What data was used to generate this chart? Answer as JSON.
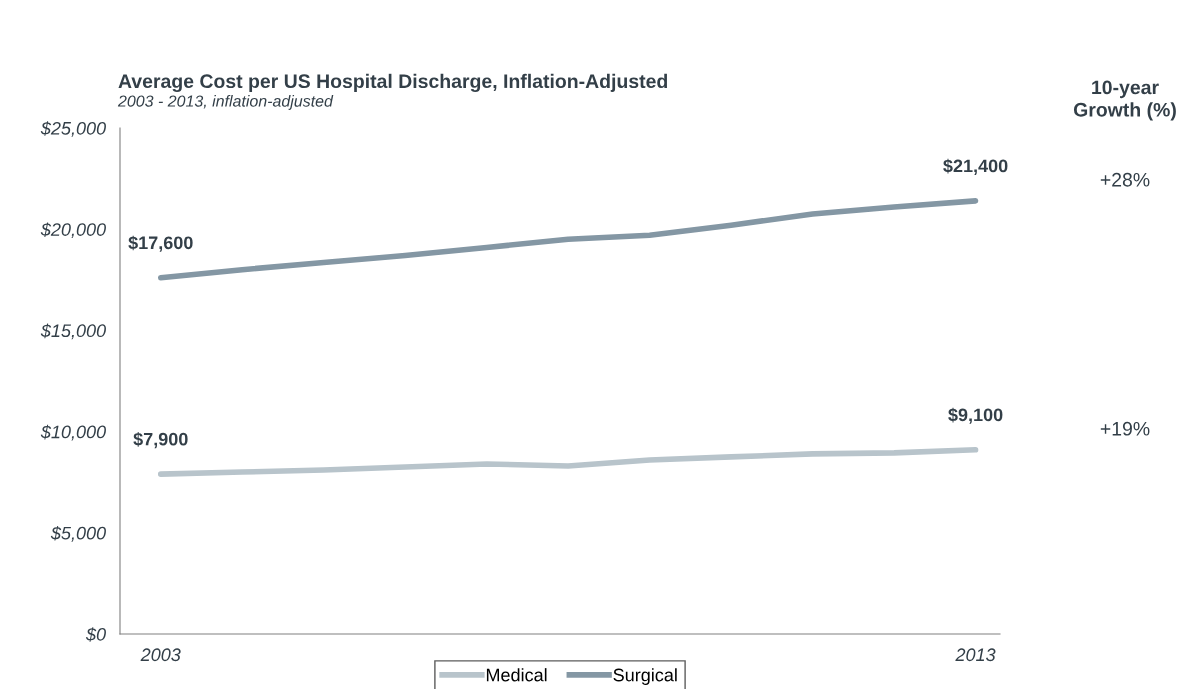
{
  "chart_data": {
    "type": "line",
    "title": "Average Cost per US Hospital Discharge, Inflation-Adjusted",
    "subtitle": "2003 - 2013, inflation-adjusted",
    "x": [
      2003,
      2004,
      2005,
      2006,
      2007,
      2008,
      2009,
      2010,
      2011,
      2012,
      2013
    ],
    "series": [
      {
        "name": "Medical",
        "color": "#b8c4cb",
        "values": [
          7900,
          8000,
          8100,
          8250,
          8400,
          8300,
          8600,
          8750,
          8900,
          8950,
          9100
        ],
        "value_labels": [
          "$7,900",
          null,
          null,
          null,
          null,
          null,
          null,
          null,
          null,
          null,
          "$9,100"
        ]
      },
      {
        "name": "Surgical",
        "color": "#8497a4",
        "values": [
          17600,
          18000,
          18350,
          18700,
          19100,
          19500,
          19700,
          20200,
          20750,
          21100,
          21400
        ],
        "value_labels": [
          "$17,600",
          null,
          null,
          null,
          null,
          null,
          null,
          null,
          null,
          null,
          "$21,400"
        ]
      }
    ],
    "xlim": [
      2002.5,
      2013.3
    ],
    "xticks": [
      2003,
      2013
    ],
    "ylim": [
      0,
      25000
    ],
    "yticks": [
      {
        "value": 0,
        "label": "$0"
      },
      {
        "value": 5000,
        "label": "$5,000"
      },
      {
        "value": 10000,
        "label": "$10,000"
      },
      {
        "value": 15000,
        "label": "$15,000"
      },
      {
        "value": 20000,
        "label": "$20,000"
      },
      {
        "value": 25000,
        "label": "$25,000"
      }
    ],
    "annotations": [
      "10-year\nGrowth (%)",
      "+19%",
      "+28%"
    ],
    "grid": false,
    "legend": "bottom",
    "marker": "none",
    "line_style": "solid"
  }
}
